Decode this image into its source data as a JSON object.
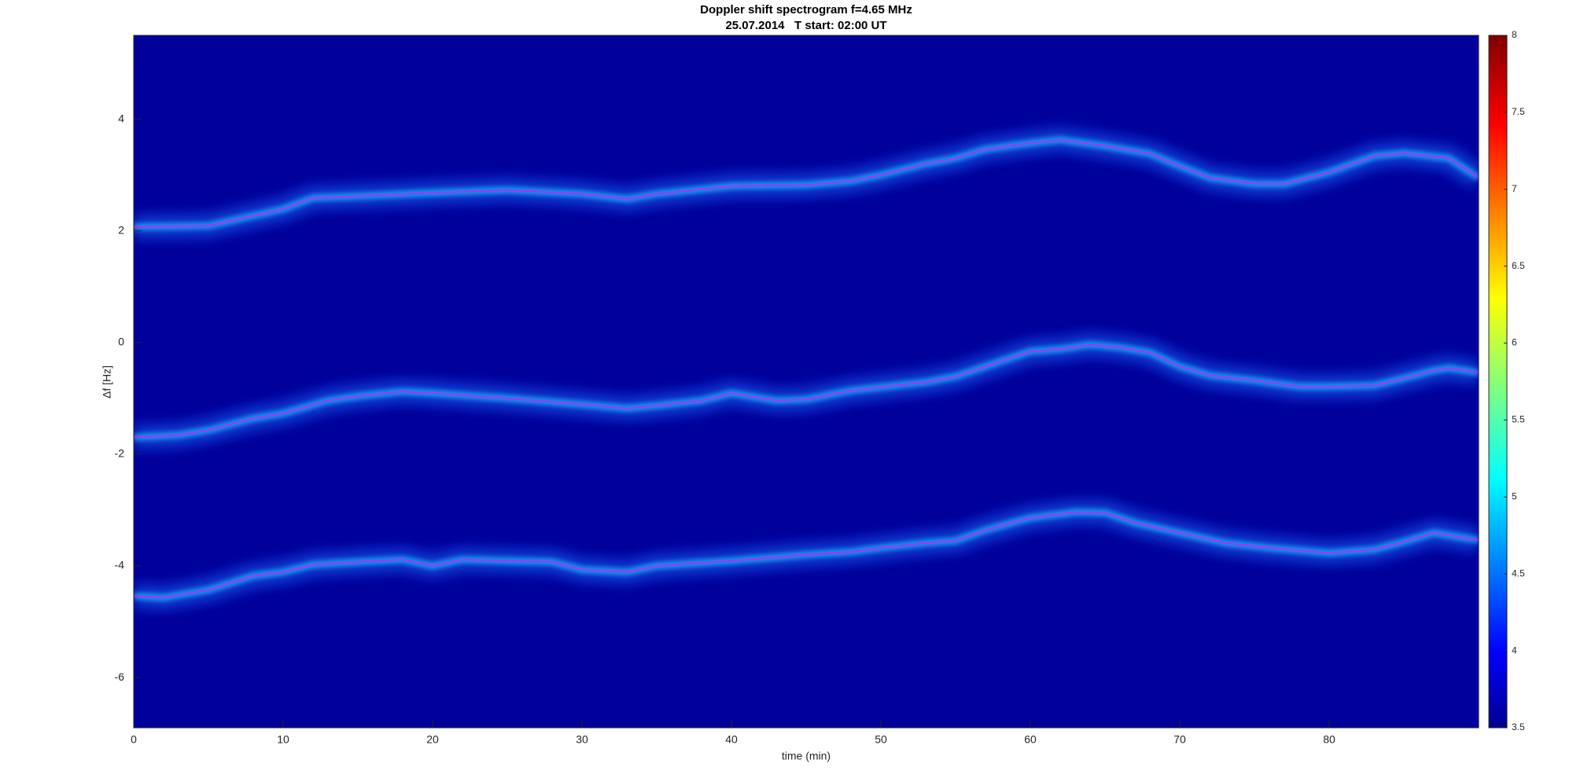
{
  "chart_data": {
    "type": "line",
    "title": "Doppler shift spectrogram f=4.65 MHz",
    "subtitle": "25.07.2014   T start: 02:00 UT",
    "x_label": "time (min)",
    "y_label": "Δf [Hz]",
    "xlim": [
      0,
      90
    ],
    "xticks": [
      0,
      10,
      20,
      30,
      40,
      50,
      60,
      70,
      80
    ],
    "ylim": [
      -6.9,
      5.5
    ],
    "yticks": [
      -6,
      -4,
      -2,
      0,
      2,
      4
    ],
    "background": "#00009b",
    "series": [
      {
        "color": "#ff00ff",
        "x": [
          0,
          5,
          8,
          10,
          12,
          15,
          20,
          25,
          30,
          33,
          35,
          40,
          45,
          48,
          50,
          53,
          55,
          57,
          60,
          62,
          65,
          68,
          70,
          72,
          75,
          77,
          80,
          83,
          85,
          88,
          90
        ],
        "values": [
          2.07,
          2.09,
          2.27,
          2.39,
          2.59,
          2.62,
          2.68,
          2.73,
          2.66,
          2.57,
          2.66,
          2.8,
          2.82,
          2.89,
          3.0,
          3.2,
          3.3,
          3.46,
          3.57,
          3.63,
          3.52,
          3.38,
          3.16,
          2.95,
          2.84,
          2.84,
          3.05,
          3.34,
          3.39,
          3.3,
          2.95
        ]
      },
      {
        "color": "#ff00ff",
        "x": [
          0,
          3,
          5,
          8,
          10,
          13,
          15,
          18,
          20,
          25,
          30,
          33,
          35,
          38,
          40,
          43,
          45,
          48,
          50,
          53,
          55,
          57,
          60,
          62,
          64,
          66,
          68,
          70,
          72,
          75,
          78,
          80,
          83,
          85,
          87,
          88,
          90
        ],
        "values": [
          -1.7,
          -1.66,
          -1.57,
          -1.36,
          -1.27,
          -1.04,
          -0.96,
          -0.88,
          -0.91,
          -1.0,
          -1.11,
          -1.18,
          -1.13,
          -1.04,
          -0.91,
          -1.04,
          -1.02,
          -0.86,
          -0.8,
          -0.71,
          -0.61,
          -0.43,
          -0.16,
          -0.12,
          -0.04,
          -0.09,
          -0.18,
          -0.43,
          -0.59,
          -0.68,
          -0.79,
          -0.79,
          -0.77,
          -0.64,
          -0.5,
          -0.46,
          -0.54
        ]
      },
      {
        "color": "#ff00ff",
        "x": [
          0,
          2,
          5,
          8,
          10,
          12,
          15,
          18,
          20,
          22,
          25,
          28,
          30,
          33,
          35,
          40,
          45,
          48,
          50,
          53,
          55,
          57,
          60,
          63,
          65,
          67,
          70,
          73,
          76,
          80,
          83,
          85,
          87,
          90
        ],
        "values": [
          -4.54,
          -4.57,
          -4.43,
          -4.18,
          -4.11,
          -3.98,
          -3.93,
          -3.89,
          -4.0,
          -3.89,
          -3.91,
          -3.93,
          -4.07,
          -4.11,
          -4.0,
          -3.91,
          -3.8,
          -3.75,
          -3.68,
          -3.59,
          -3.55,
          -3.36,
          -3.14,
          -3.04,
          -3.05,
          -3.23,
          -3.41,
          -3.59,
          -3.68,
          -3.77,
          -3.71,
          -3.57,
          -3.41,
          -3.54
        ]
      }
    ],
    "colorbar": {
      "lim": [
        3.5,
        8
      ],
      "ticks": [
        3.5,
        4,
        4.5,
        5,
        5.5,
        6,
        6.5,
        7,
        7.5,
        8
      ],
      "colormap": "jet"
    }
  }
}
